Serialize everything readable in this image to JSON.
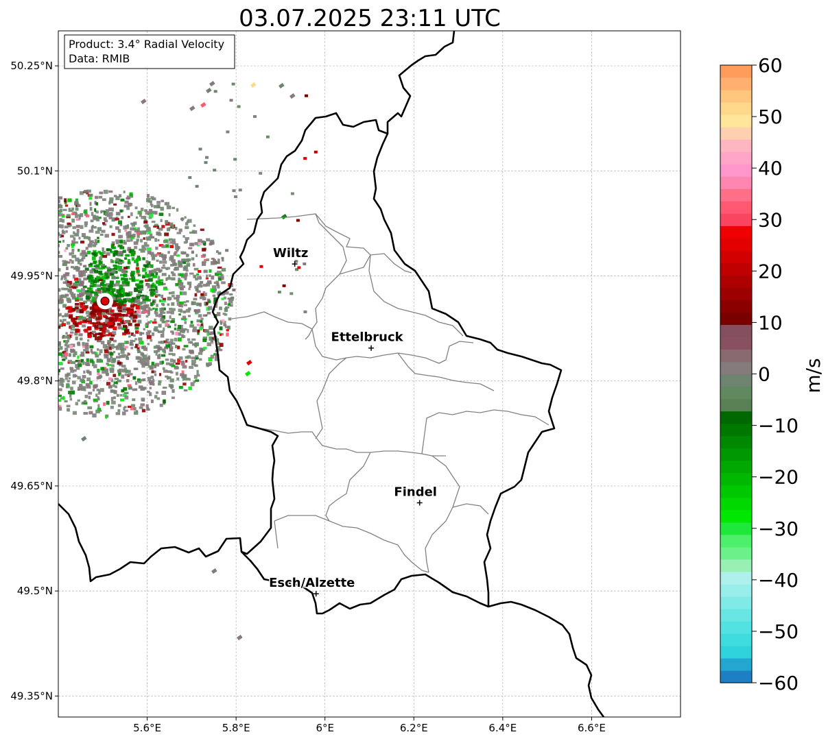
{
  "title": "03.07.2025 23:11 UTC",
  "info_box": {
    "product": "Product: 3.4° Radial Velocity",
    "data": "Data: RMIB"
  },
  "map": {
    "lon_range": [
      5.4,
      6.8
    ],
    "lat_range": [
      49.32,
      50.3
    ],
    "x_ticks": [
      {
        "value": 5.6,
        "label": "5.6°E"
      },
      {
        "value": 5.8,
        "label": "5.8°E"
      },
      {
        "value": 6.0,
        "label": "6°E"
      },
      {
        "value": 6.2,
        "label": "6.2°E"
      },
      {
        "value": 6.4,
        "label": "6.4°E"
      },
      {
        "value": 6.6,
        "label": "6.6°E"
      }
    ],
    "y_ticks": [
      {
        "value": 49.35,
        "label": "49.35°N"
      },
      {
        "value": 49.5,
        "label": "49.5°N"
      },
      {
        "value": 49.65,
        "label": "49.65°N"
      },
      {
        "value": 49.8,
        "label": "49.8°N"
      },
      {
        "value": 49.95,
        "label": "49.95°N"
      },
      {
        "value": 50.1,
        "label": "50.1°N"
      },
      {
        "value": 50.25,
        "label": "50.25°N"
      }
    ],
    "grid": true,
    "radar_site": {
      "lon": 5.505,
      "lat": 49.914
    },
    "cities": [
      {
        "name": "Wiltz",
        "lon": 5.932,
        "lat": 49.967
      },
      {
        "name": "Ettelbruck",
        "lon": 6.104,
        "lat": 49.847
      },
      {
        "name": "Findel",
        "lon": 6.213,
        "lat": 49.626
      },
      {
        "name": "Esch/Alzette",
        "lon": 5.98,
        "lat": 49.496
      }
    ]
  },
  "colorbar": {
    "label": "m/s",
    "min": -60,
    "max": 60,
    "ticks": [
      {
        "value": 60,
        "label": "60"
      },
      {
        "value": 50,
        "label": "50"
      },
      {
        "value": 40,
        "label": "40"
      },
      {
        "value": 30,
        "label": "30"
      },
      {
        "value": 20,
        "label": "20"
      },
      {
        "value": 10,
        "label": "10"
      },
      {
        "value": 0,
        "label": "0"
      },
      {
        "value": -10,
        "label": "−10"
      },
      {
        "value": -20,
        "label": "−20"
      },
      {
        "value": -30,
        "label": "−30"
      },
      {
        "value": -40,
        "label": "−40"
      },
      {
        "value": -50,
        "label": "−50"
      },
      {
        "value": -60,
        "label": "−60"
      }
    ],
    "colors": [
      "#1f7fc4",
      "#23a6cf",
      "#2ed3dc",
      "#3fdcdf",
      "#52e2e2",
      "#68e6e4",
      "#80eae7",
      "#98eeea",
      "#b0f0ec",
      "#98f0b4",
      "#6cf08a",
      "#4cf06a",
      "#1ee83a",
      "#00e800",
      "#00d800",
      "#00c800",
      "#00b800",
      "#00a800",
      "#009800",
      "#008800",
      "#007800",
      "#006800",
      "#5a8055",
      "#608960",
      "#6f8470",
      "#857a7c",
      "#886a70",
      "#885060",
      "#845060",
      "#7a0000",
      "#8a0000",
      "#9c0000",
      "#ae0000",
      "#c00000",
      "#d20000",
      "#e40000",
      "#f00000",
      "#fa4560",
      "#ff5870",
      "#ff6f88",
      "#ff86b0",
      "#ff96cc",
      "#ffa6c8",
      "#ffb6c0",
      "#ffd0b0",
      "#ffe69a",
      "#ffd88c",
      "#ffc67e",
      "#ffb070",
      "#ff9c5c"
    ]
  }
}
